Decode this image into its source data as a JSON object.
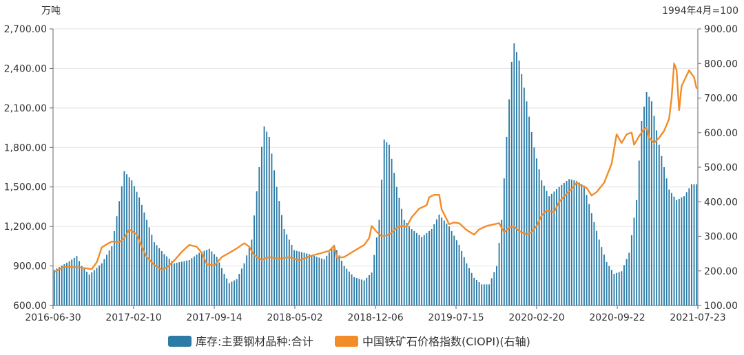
{
  "chart_data": {
    "type": "bar",
    "left_unit": "万吨",
    "right_unit": "1994年4月=100",
    "x_tick_labels": [
      "2016-06-30",
      "2017-02-10",
      "2017-09-14",
      "2018-05-02",
      "2018-12-06",
      "2019-07-15",
      "2020-02-20",
      "2020-09-22",
      "2021-07-23"
    ],
    "left_axis": {
      "min": 600,
      "max": 2700,
      "ticks": [
        "600.00",
        "900.00",
        "1,200.00",
        "1,500.00",
        "1,800.00",
        "2,100.00",
        "2,400.00",
        "2,700.00"
      ]
    },
    "right_axis": {
      "min": 100,
      "max": 900,
      "ticks": [
        "100.00",
        "200.00",
        "300.00",
        "400.00",
        "500.00",
        "600.00",
        "700.00",
        "800.00",
        "900.00"
      ]
    },
    "colors": {
      "bar": "#2b7ba6",
      "line": "#f28c28",
      "grid": "#e3e3e3",
      "axis": "#666666"
    },
    "series": [
      {
        "name": "库存:主要钢材品种:合计",
        "kind": "bar",
        "axis": "left",
        "keypoints": [
          [
            0,
            870
          ],
          [
            6,
            935
          ],
          [
            9,
            975
          ],
          [
            11,
            900
          ],
          [
            14,
            835
          ],
          [
            19,
            920
          ],
          [
            23,
            1050
          ],
          [
            28,
            1620
          ],
          [
            31,
            1550
          ],
          [
            34,
            1420
          ],
          [
            37,
            1250
          ],
          [
            40,
            1080
          ],
          [
            44,
            990
          ],
          [
            48,
            920
          ],
          [
            54,
            945
          ],
          [
            58,
            1000
          ],
          [
            62,
            1030
          ],
          [
            65,
            970
          ],
          [
            68,
            840
          ],
          [
            70,
            770
          ],
          [
            73,
            800
          ],
          [
            76,
            920
          ],
          [
            79,
            1100
          ],
          [
            82,
            1650
          ],
          [
            84,
            1960
          ],
          [
            86,
            1880
          ],
          [
            89,
            1500
          ],
          [
            92,
            1180
          ],
          [
            96,
            1020
          ],
          [
            102,
            990
          ],
          [
            108,
            950
          ],
          [
            112,
            1060
          ],
          [
            116,
            900
          ],
          [
            120,
            815
          ],
          [
            124,
            790
          ],
          [
            127,
            850
          ],
          [
            130,
            1250
          ],
          [
            132,
            1860
          ],
          [
            134,
            1820
          ],
          [
            137,
            1500
          ],
          [
            140,
            1250
          ],
          [
            143,
            1180
          ],
          [
            147,
            1120
          ],
          [
            151,
            1180
          ],
          [
            154,
            1290
          ],
          [
            158,
            1200
          ],
          [
            162,
            1060
          ],
          [
            165,
            920
          ],
          [
            168,
            810
          ],
          [
            171,
            760
          ],
          [
            174,
            760
          ],
          [
            177,
            900
          ],
          [
            179,
            1250
          ],
          [
            181,
            1880
          ],
          [
            183,
            2450
          ],
          [
            184,
            2590
          ],
          [
            186,
            2460
          ],
          [
            189,
            2150
          ],
          [
            192,
            1800
          ],
          [
            195,
            1550
          ],
          [
            198,
            1430
          ],
          [
            202,
            1500
          ],
          [
            206,
            1560
          ],
          [
            209,
            1545
          ],
          [
            212,
            1510
          ],
          [
            215,
            1300
          ],
          [
            218,
            1100
          ],
          [
            221,
            930
          ],
          [
            224,
            840
          ],
          [
            227,
            860
          ],
          [
            230,
            1000
          ],
          [
            233,
            1400
          ],
          [
            235,
            2000
          ],
          [
            237,
            2220
          ],
          [
            239,
            2150
          ],
          [
            242,
            1820
          ],
          [
            246,
            1480
          ],
          [
            249,
            1400
          ],
          [
            252,
            1430
          ],
          [
            255,
            1520
          ]
        ]
      },
      {
        "name": "中国铁矿石价格指数(CIOPI)(右轴)",
        "kind": "line",
        "axis": "right",
        "keypoints": [
          [
            0,
            197
          ],
          [
            4,
            212
          ],
          [
            10,
            210
          ],
          [
            15,
            205
          ],
          [
            17,
            225
          ],
          [
            19,
            268
          ],
          [
            21,
            277
          ],
          [
            23,
            285
          ],
          [
            26,
            283
          ],
          [
            28,
            295
          ],
          [
            30,
            320
          ],
          [
            33,
            305
          ],
          [
            35,
            270
          ],
          [
            37,
            240
          ],
          [
            40,
            217
          ],
          [
            43,
            203
          ],
          [
            45,
            210
          ],
          [
            48,
            230
          ],
          [
            51,
            255
          ],
          [
            54,
            275
          ],
          [
            57,
            270
          ],
          [
            59,
            252
          ],
          [
            61,
            220
          ],
          [
            64,
            215
          ],
          [
            67,
            240
          ],
          [
            70,
            252
          ],
          [
            73,
            265
          ],
          [
            76,
            280
          ],
          [
            78,
            270
          ],
          [
            80,
            245
          ],
          [
            83,
            232
          ],
          [
            86,
            240
          ],
          [
            90,
            235
          ],
          [
            94,
            240
          ],
          [
            98,
            230
          ],
          [
            102,
            242
          ],
          [
            106,
            250
          ],
          [
            110,
            258
          ],
          [
            112,
            273
          ],
          [
            113,
            238
          ],
          [
            116,
            240
          ],
          [
            120,
            258
          ],
          [
            124,
            275
          ],
          [
            126,
            295
          ],
          [
            127,
            330
          ],
          [
            129,
            313
          ],
          [
            131,
            300
          ],
          [
            133,
            303
          ],
          [
            135,
            310
          ],
          [
            137,
            325
          ],
          [
            139,
            330
          ],
          [
            141,
            328
          ],
          [
            143,
            355
          ],
          [
            146,
            380
          ],
          [
            149,
            390
          ],
          [
            150,
            413
          ],
          [
            152,
            420
          ],
          [
            154,
            420
          ],
          [
            155,
            378
          ],
          [
            158,
            335
          ],
          [
            160,
            340
          ],
          [
            162,
            338
          ],
          [
            165,
            318
          ],
          [
            168,
            305
          ],
          [
            170,
            320
          ],
          [
            173,
            330
          ],
          [
            176,
            335
          ],
          [
            178,
            338
          ],
          [
            180,
            312
          ],
          [
            182,
            325
          ],
          [
            184,
            328
          ],
          [
            186,
            315
          ],
          [
            189,
            305
          ],
          [
            191,
            312
          ],
          [
            193,
            330
          ],
          [
            195,
            360
          ],
          [
            197,
            375
          ],
          [
            200,
            370
          ],
          [
            202,
            400
          ],
          [
            205,
            423
          ],
          [
            207,
            437
          ],
          [
            209,
            455
          ],
          [
            210,
            450
          ],
          [
            213,
            440
          ],
          [
            215,
            418
          ],
          [
            217,
            428
          ],
          [
            220,
            455
          ],
          [
            223,
            510
          ],
          [
            225,
            595
          ],
          [
            227,
            570
          ],
          [
            229,
            595
          ],
          [
            231,
            600
          ],
          [
            232,
            565
          ],
          [
            234,
            590
          ],
          [
            236,
            610
          ],
          [
            237,
            615
          ],
          [
            238,
            585
          ],
          [
            240,
            570
          ],
          [
            242,
            585
          ],
          [
            244,
            605
          ],
          [
            246,
            640
          ],
          [
            247,
            700
          ],
          [
            248,
            800
          ],
          [
            249,
            780
          ],
          [
            250,
            665
          ],
          [
            251,
            735
          ],
          [
            253,
            765
          ],
          [
            254,
            780
          ],
          [
            256,
            760
          ],
          [
            257,
            727
          ]
        ]
      }
    ],
    "legend": [
      {
        "label": "库存:主要钢材品种:合计",
        "color": "#2b7ba6"
      },
      {
        "label": "中国铁矿石价格指数(CIOPI)(右轴)",
        "color": "#f28c28"
      }
    ],
    "grid": true,
    "legend_position": "bottom"
  }
}
